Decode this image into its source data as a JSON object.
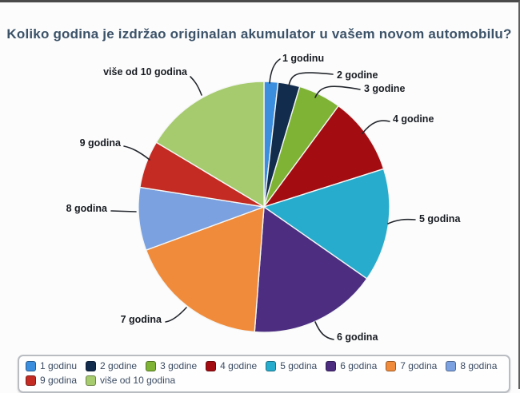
{
  "chart_data": {
    "type": "pie",
    "title": "Koliko godina je izdržao originalan akumulator u vašem novom automobilu?",
    "legend_position": "bottom",
    "labels_shown_as": "outside-callouts",
    "start_angle_deg": 0,
    "direction": "clockwise",
    "slices": [
      {
        "label": "1 godinu",
        "value_pct": 1.8,
        "color": "#3b8ede"
      },
      {
        "label": "2 godine",
        "value_pct": 2.8,
        "color": "#122c4e"
      },
      {
        "label": "3 godine",
        "value_pct": 5.5,
        "color": "#7fb335"
      },
      {
        "label": "4 godine",
        "value_pct": 10.0,
        "color": "#a30d12"
      },
      {
        "label": "5 godina",
        "value_pct": 14.6,
        "color": "#28accd"
      },
      {
        "label": "6 godina",
        "value_pct": 16.5,
        "color": "#4c2d80"
      },
      {
        "label": "7 godina",
        "value_pct": 18.2,
        "color": "#f08b3c"
      },
      {
        "label": "8 godina",
        "value_pct": 8.1,
        "color": "#7ba1e0"
      },
      {
        "label": "9 godina",
        "value_pct": 6.1,
        "color": "#c32b23"
      },
      {
        "label": "više od 10 godina",
        "value_pct": 16.4,
        "color": "#a6ca6e"
      }
    ]
  }
}
